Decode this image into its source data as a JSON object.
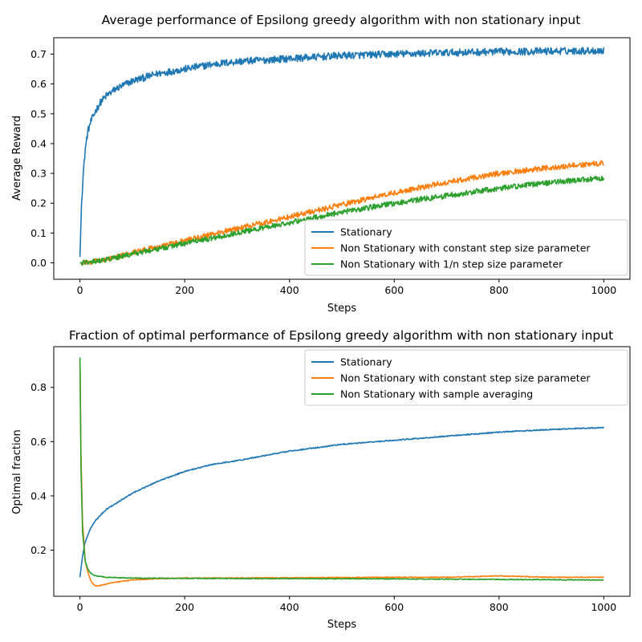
{
  "chart_data": [
    {
      "type": "line",
      "title": "Average performance of Epsilong greedy algorithm with non stationary input",
      "xlabel": "Steps",
      "ylabel": "Average Reward",
      "xlim": [
        -50,
        1050
      ],
      "ylim": [
        -0.055,
        0.755
      ],
      "xticks": [
        0,
        200,
        400,
        600,
        800,
        1000
      ],
      "yticks": [
        0.0,
        0.1,
        0.2,
        0.3,
        0.4,
        0.5,
        0.6,
        0.7
      ],
      "grid": false,
      "legend_position": "lower-right",
      "series": [
        {
          "name": "Stationary",
          "color": "#1f77b4",
          "noise": 0.012,
          "points": [
            [
              0,
              0.02
            ],
            [
              3,
              0.2
            ],
            [
              6,
              0.29
            ],
            [
              10,
              0.38
            ],
            [
              15,
              0.44
            ],
            [
              20,
              0.47
            ],
            [
              30,
              0.51
            ],
            [
              40,
              0.54
            ],
            [
              50,
              0.56
            ],
            [
              70,
              0.585
            ],
            [
              100,
              0.61
            ],
            [
              150,
              0.635
            ],
            [
              200,
              0.65
            ],
            [
              250,
              0.665
            ],
            [
              300,
              0.675
            ],
            [
              400,
              0.685
            ],
            [
              500,
              0.695
            ],
            [
              600,
              0.7
            ],
            [
              700,
              0.705
            ],
            [
              800,
              0.708
            ],
            [
              900,
              0.71
            ],
            [
              1000,
              0.712
            ]
          ]
        },
        {
          "name": "Non Stationary with constant step size parameter",
          "color": "#ff7f0e",
          "noise": 0.009,
          "points": [
            [
              0,
              0.0
            ],
            [
              50,
              0.01
            ],
            [
              100,
              0.035
            ],
            [
              200,
              0.075
            ],
            [
              300,
              0.115
            ],
            [
              400,
              0.155
            ],
            [
              500,
              0.195
            ],
            [
              600,
              0.235
            ],
            [
              700,
              0.27
            ],
            [
              800,
              0.3
            ],
            [
              900,
              0.32
            ],
            [
              1000,
              0.335
            ]
          ]
        },
        {
          "name": "Non Stationary with 1/n step size parameter",
          "color": "#2ca02c",
          "noise": 0.009,
          "points": [
            [
              0,
              0.0
            ],
            [
              50,
              0.01
            ],
            [
              100,
              0.03
            ],
            [
              200,
              0.065
            ],
            [
              300,
              0.1
            ],
            [
              400,
              0.135
            ],
            [
              500,
              0.17
            ],
            [
              600,
              0.2
            ],
            [
              700,
              0.225
            ],
            [
              800,
              0.25
            ],
            [
              900,
              0.27
            ],
            [
              1000,
              0.285
            ]
          ]
        }
      ]
    },
    {
      "type": "line",
      "title": "Fraction of optimal performance of Epsilong greedy algorithm with non stationary input",
      "xlabel": "Steps",
      "ylabel": "Optimal fraction",
      "xlim": [
        -50,
        1050
      ],
      "ylim": [
        0.03,
        0.95
      ],
      "xticks": [
        0,
        200,
        400,
        600,
        800,
        1000
      ],
      "yticks": [
        0.2,
        0.4,
        0.6,
        0.8
      ],
      "grid": false,
      "legend_position": "upper-right",
      "series": [
        {
          "name": "Stationary",
          "color": "#1f77b4",
          "noise": 0.002,
          "points": [
            [
              0,
              0.1
            ],
            [
              5,
              0.18
            ],
            [
              10,
              0.23
            ],
            [
              20,
              0.28
            ],
            [
              30,
              0.31
            ],
            [
              50,
              0.35
            ],
            [
              75,
              0.38
            ],
            [
              100,
              0.41
            ],
            [
              150,
              0.455
            ],
            [
              200,
              0.49
            ],
            [
              250,
              0.515
            ],
            [
              300,
              0.53
            ],
            [
              400,
              0.565
            ],
            [
              500,
              0.59
            ],
            [
              600,
              0.605
            ],
            [
              700,
              0.62
            ],
            [
              800,
              0.635
            ],
            [
              900,
              0.645
            ],
            [
              1000,
              0.652
            ]
          ]
        },
        {
          "name": "Non Stationary with constant step size parameter",
          "color": "#ff7f0e",
          "noise": 0.0015,
          "points": [
            [
              0,
              0.9
            ],
            [
              2,
              0.55
            ],
            [
              5,
              0.3
            ],
            [
              10,
              0.16
            ],
            [
              15,
              0.12
            ],
            [
              20,
              0.09
            ],
            [
              25,
              0.075
            ],
            [
              30,
              0.068
            ],
            [
              40,
              0.07
            ],
            [
              60,
              0.08
            ],
            [
              100,
              0.09
            ],
            [
              150,
              0.095
            ],
            [
              200,
              0.097
            ],
            [
              400,
              0.098
            ],
            [
              600,
              0.1
            ],
            [
              700,
              0.1
            ],
            [
              800,
              0.105
            ],
            [
              900,
              0.1
            ],
            [
              1000,
              0.1
            ]
          ]
        },
        {
          "name": "Non Stationary with sample averaging",
          "color": "#2ca02c",
          "noise": 0.0015,
          "points": [
            [
              0,
              0.91
            ],
            [
              2,
              0.5
            ],
            [
              5,
              0.27
            ],
            [
              10,
              0.16
            ],
            [
              15,
              0.13
            ],
            [
              20,
              0.115
            ],
            [
              30,
              0.105
            ],
            [
              50,
              0.1
            ],
            [
              100,
              0.097
            ],
            [
              200,
              0.096
            ],
            [
              400,
              0.095
            ],
            [
              600,
              0.094
            ],
            [
              800,
              0.092
            ],
            [
              1000,
              0.09
            ]
          ]
        }
      ]
    }
  ]
}
